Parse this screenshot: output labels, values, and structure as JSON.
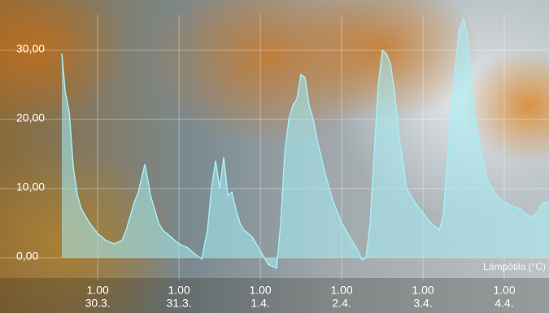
{
  "chart_data": {
    "type": "area",
    "x": [
      -10.6,
      -9.6,
      -8.4,
      -7.2,
      -6.0,
      -4.8,
      -2.4,
      0,
      2.4,
      4.8,
      7.2,
      8.4,
      9.6,
      10.8,
      12,
      13.2,
      13.9,
      14.9,
      15.6,
      16.8,
      18,
      19.2,
      21.6,
      24,
      26.4,
      28.8,
      30.7,
      32.4,
      33.6,
      34.8,
      36,
      37.2,
      38.4,
      39.6,
      40.8,
      42,
      43.2,
      45.6,
      48,
      50.4,
      52.8,
      54,
      55.2,
      56.4,
      57.6,
      58.8,
      60,
      61.2,
      62.4,
      63.6,
      64.8,
      67.2,
      69.6,
      72,
      74.4,
      76.8,
      78,
      79.2,
      80.4,
      81.6,
      82.8,
      84,
      85.2,
      86.4,
      87.6,
      88.8,
      91.2,
      93.6,
      96,
      98.4,
      100.8,
      102,
      103.2,
      105.6,
      106.8,
      108,
      109.2,
      110.4,
      112.8,
      115.2,
      117.6,
      120,
      122.4,
      124.8,
      127.2,
      128.4,
      129.6,
      130.8,
      132,
      133.2
    ],
    "series": [
      {
        "name": "Lämpötila (°C)",
        "color": "#a6eef5",
        "values": [
          29.5,
          24,
          21,
          13,
          9,
          7,
          5,
          3.5,
          2.5,
          2,
          2.5,
          4,
          6,
          8,
          9.5,
          12,
          13.5,
          11,
          9,
          7,
          5,
          4,
          3,
          2,
          1.5,
          0.5,
          -0.2,
          4,
          10,
          14,
          10,
          14.5,
          9,
          9.5,
          7,
          5,
          4,
          3,
          1,
          -1,
          -1.5,
          5,
          15,
          20,
          22,
          23,
          26.5,
          26,
          22,
          20,
          17,
          12,
          8,
          5,
          3,
          1,
          -0.3,
          0,
          5,
          15,
          25,
          30,
          29.5,
          28,
          24,
          18,
          10,
          8,
          6.5,
          5,
          4,
          6,
          14,
          28,
          33,
          34.5,
          32,
          24,
          16,
          11,
          9,
          8,
          7.5,
          7,
          6,
          6,
          6.5,
          7.5,
          8,
          8
        ]
      }
    ],
    "xlim": [
      -10.6,
      133.2
    ],
    "xticks": [
      {
        "value": 0,
        "label": [
          "1.00",
          "30.3."
        ]
      },
      {
        "value": 24,
        "label": [
          "1.00",
          "31.3."
        ]
      },
      {
        "value": 48,
        "label": [
          "1.00",
          "1.4."
        ]
      },
      {
        "value": 72,
        "label": [
          "1.00",
          "2.4."
        ]
      },
      {
        "value": 96,
        "label": [
          "1.00",
          "3.4."
        ]
      },
      {
        "value": 120,
        "label": [
          "1.00",
          "4.4."
        ]
      }
    ],
    "ylim": [
      -2.7,
      34.9
    ],
    "yticks": [
      {
        "value": 0,
        "label": "0,00"
      },
      {
        "value": 10,
        "label": "10,00"
      },
      {
        "value": 20,
        "label": "20,00"
      },
      {
        "value": 30,
        "label": "30,00"
      }
    ],
    "grid": true
  }
}
